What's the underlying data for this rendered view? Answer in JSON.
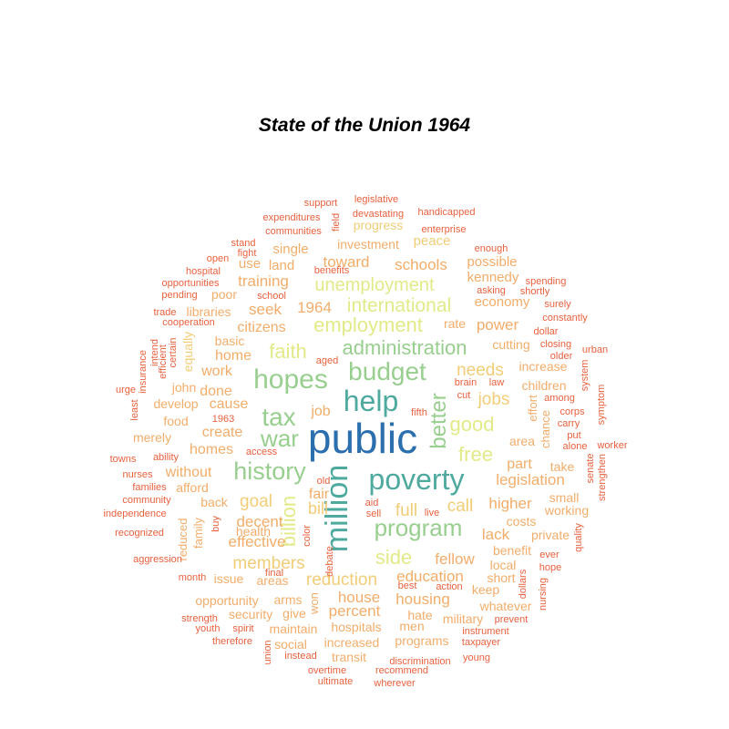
{
  "chart_data": {
    "type": "wordcloud",
    "title": "State of the Union 1964",
    "palette": {
      "t5": "#2c6fae",
      "t4": "#4ea99e",
      "t3": "#98cf8f",
      "t2": "#e2ea88",
      "t1": "#f1cd77",
      "t0b": "#f2ad6a",
      "t0": "#e8613f"
    },
    "words": [
      {
        "text": "public",
        "tier": "t5"
      },
      {
        "text": "help",
        "tier": "t4"
      },
      {
        "text": "million",
        "tier": "t4"
      },
      {
        "text": "poverty",
        "tier": "t4"
      },
      {
        "text": "hopes",
        "tier": "t3"
      },
      {
        "text": "budget",
        "tier": "t3"
      },
      {
        "text": "tax",
        "tier": "t3"
      },
      {
        "text": "war",
        "tier": "t3"
      },
      {
        "text": "history",
        "tier": "t3"
      },
      {
        "text": "program",
        "tier": "t3"
      },
      {
        "text": "administration",
        "tier": "t3"
      },
      {
        "text": "employment",
        "tier": "t2"
      },
      {
        "text": "better",
        "tier": "t3"
      },
      {
        "text": "faith",
        "tier": "t2"
      },
      {
        "text": "good",
        "tier": "t2"
      },
      {
        "text": "free",
        "tier": "t2"
      },
      {
        "text": "billion",
        "tier": "t2"
      },
      {
        "text": "side",
        "tier": "t2"
      },
      {
        "text": "international",
        "tier": "t2"
      },
      {
        "text": "unemployment",
        "tier": "t2"
      },
      {
        "text": "needs",
        "tier": "t1"
      },
      {
        "text": "jobs",
        "tier": "t1"
      },
      {
        "text": "goal",
        "tier": "t1"
      },
      {
        "text": "members",
        "tier": "t1"
      },
      {
        "text": "full",
        "tier": "t1"
      },
      {
        "text": "call",
        "tier": "t1"
      },
      {
        "text": "bill",
        "tier": "t1"
      },
      {
        "text": "reduction",
        "tier": "t1"
      },
      {
        "text": "schools",
        "tier": "t0b"
      },
      {
        "text": "toward",
        "tier": "t0b"
      },
      {
        "text": "training",
        "tier": "t0b"
      },
      {
        "text": "seek",
        "tier": "t0b"
      },
      {
        "text": "1964",
        "tier": "t0b"
      },
      {
        "text": "citizens",
        "tier": "t0b"
      },
      {
        "text": "power",
        "tier": "t0b"
      },
      {
        "text": "legislation",
        "tier": "t0b"
      },
      {
        "text": "higher",
        "tier": "t0b"
      },
      {
        "text": "lack",
        "tier": "t0b"
      },
      {
        "text": "fellow",
        "tier": "t0b"
      },
      {
        "text": "education",
        "tier": "t0b"
      },
      {
        "text": "house",
        "tier": "t0b"
      },
      {
        "text": "housing",
        "tier": "t0b"
      },
      {
        "text": "percent",
        "tier": "t0b"
      },
      {
        "text": "decent",
        "tier": "t0b"
      },
      {
        "text": "effective",
        "tier": "t0b"
      },
      {
        "text": "homes",
        "tier": "t0b"
      },
      {
        "text": "without",
        "tier": "t0b"
      },
      {
        "text": "create",
        "tier": "t0b"
      },
      {
        "text": "cause",
        "tier": "t0b"
      },
      {
        "text": "done",
        "tier": "t0b"
      },
      {
        "text": "work",
        "tier": "t0b"
      },
      {
        "text": "home",
        "tier": "t0b"
      },
      {
        "text": "fair",
        "tier": "t0b"
      },
      {
        "text": "job",
        "tier": "t0b"
      },
      {
        "text": "part",
        "tier": "t0b"
      },
      {
        "text": "economy",
        "tier": "t0b"
      },
      {
        "text": "kennedy",
        "tier": "t0b"
      },
      {
        "text": "possible",
        "tier": "t0b"
      },
      {
        "text": "peace",
        "tier": "t1"
      },
      {
        "text": "investment",
        "tier": "t0b"
      },
      {
        "text": "progress",
        "tier": "t1"
      },
      {
        "text": "single",
        "tier": "t0b"
      },
      {
        "text": "land",
        "tier": "t0b"
      },
      {
        "text": "use",
        "tier": "t0b"
      },
      {
        "text": "poor",
        "tier": "t0b"
      },
      {
        "text": "libraries",
        "tier": "t0b"
      },
      {
        "text": "basic",
        "tier": "t0b"
      },
      {
        "text": "equally",
        "tier": "t1"
      },
      {
        "text": "rate",
        "tier": "t0b"
      },
      {
        "text": "cutting",
        "tier": "t0b"
      },
      {
        "text": "increase",
        "tier": "t0b"
      },
      {
        "text": "children",
        "tier": "t0b"
      },
      {
        "text": "area",
        "tier": "t0b"
      },
      {
        "text": "take",
        "tier": "t0b"
      },
      {
        "text": "working",
        "tier": "t0b"
      },
      {
        "text": "small",
        "tier": "t0b"
      },
      {
        "text": "costs",
        "tier": "t0b"
      },
      {
        "text": "private",
        "tier": "t0b"
      },
      {
        "text": "benefit",
        "tier": "t0b"
      },
      {
        "text": "local",
        "tier": "t0b"
      },
      {
        "text": "short",
        "tier": "t0b"
      },
      {
        "text": "keep",
        "tier": "t0b"
      },
      {
        "text": "whatever",
        "tier": "t0b"
      },
      {
        "text": "military",
        "tier": "t0b"
      },
      {
        "text": "hate",
        "tier": "t0b"
      },
      {
        "text": "men",
        "tier": "t0b"
      },
      {
        "text": "programs",
        "tier": "t0b"
      },
      {
        "text": "hospitals",
        "tier": "t0b"
      },
      {
        "text": "increased",
        "tier": "t0b"
      },
      {
        "text": "social",
        "tier": "t0b"
      },
      {
        "text": "maintain",
        "tier": "t0b"
      },
      {
        "text": "give",
        "tier": "t0b"
      },
      {
        "text": "security",
        "tier": "t0b"
      },
      {
        "text": "arms",
        "tier": "t0b"
      },
      {
        "text": "opportunity",
        "tier": "t0b"
      },
      {
        "text": "areas",
        "tier": "t0b"
      },
      {
        "text": "issue",
        "tier": "t0b"
      },
      {
        "text": "health",
        "tier": "t0b"
      },
      {
        "text": "back",
        "tier": "t0b"
      },
      {
        "text": "afford",
        "tier": "t0b"
      },
      {
        "text": "develop",
        "tier": "t0b"
      },
      {
        "text": "food",
        "tier": "t0b"
      },
      {
        "text": "merely",
        "tier": "t0b"
      },
      {
        "text": "john",
        "tier": "t0b"
      },
      {
        "text": "transit",
        "tier": "t0b"
      },
      {
        "text": "won",
        "tier": "t0b"
      },
      {
        "text": "family",
        "tier": "t0b"
      },
      {
        "text": "reduced",
        "tier": "t0b"
      },
      {
        "text": "chance",
        "tier": "t0b"
      },
      {
        "text": "effort",
        "tier": "t0b"
      },
      {
        "text": "support",
        "tier": "t0"
      },
      {
        "text": "legislative",
        "tier": "t0"
      },
      {
        "text": "expenditures",
        "tier": "t0"
      },
      {
        "text": "devastating",
        "tier": "t0"
      },
      {
        "text": "handicapped",
        "tier": "t0"
      },
      {
        "text": "field",
        "tier": "t0"
      },
      {
        "text": "communities",
        "tier": "t0"
      },
      {
        "text": "enterprise",
        "tier": "t0"
      },
      {
        "text": "stand",
        "tier": "t0"
      },
      {
        "text": "fight",
        "tier": "t0"
      },
      {
        "text": "open",
        "tier": "t0"
      },
      {
        "text": "benefits",
        "tier": "t0"
      },
      {
        "text": "enough",
        "tier": "t0"
      },
      {
        "text": "hospital",
        "tier": "t0"
      },
      {
        "text": "opportunities",
        "tier": "t0"
      },
      {
        "text": "pending",
        "tier": "t0"
      },
      {
        "text": "school",
        "tier": "t0"
      },
      {
        "text": "spending",
        "tier": "t0"
      },
      {
        "text": "asking",
        "tier": "t0"
      },
      {
        "text": "shortly",
        "tier": "t0"
      },
      {
        "text": "surely",
        "tier": "t0"
      },
      {
        "text": "constantly",
        "tier": "t0"
      },
      {
        "text": "trade",
        "tier": "t0"
      },
      {
        "text": "cooperation",
        "tier": "t0"
      },
      {
        "text": "dollar",
        "tier": "t0"
      },
      {
        "text": "closing",
        "tier": "t0"
      },
      {
        "text": "older",
        "tier": "t0"
      },
      {
        "text": "urban",
        "tier": "t0"
      },
      {
        "text": "insurance",
        "tier": "t0"
      },
      {
        "text": "intend",
        "tier": "t0"
      },
      {
        "text": "efficient",
        "tier": "t0"
      },
      {
        "text": "certain",
        "tier": "t0"
      },
      {
        "text": "aged",
        "tier": "t0"
      },
      {
        "text": "brain",
        "tier": "t0"
      },
      {
        "text": "law",
        "tier": "t0"
      },
      {
        "text": "cut",
        "tier": "t0"
      },
      {
        "text": "system",
        "tier": "t0"
      },
      {
        "text": "urge",
        "tier": "t0"
      },
      {
        "text": "least",
        "tier": "t0"
      },
      {
        "text": "among",
        "tier": "t0"
      },
      {
        "text": "symptom",
        "tier": "t0"
      },
      {
        "text": "1963",
        "tier": "t0"
      },
      {
        "text": "fifth",
        "tier": "t0"
      },
      {
        "text": "carry",
        "tier": "t0"
      },
      {
        "text": "put",
        "tier": "t0"
      },
      {
        "text": "corps",
        "tier": "t0"
      },
      {
        "text": "alone",
        "tier": "t0"
      },
      {
        "text": "worker",
        "tier": "t0"
      },
      {
        "text": "towns",
        "tier": "t0"
      },
      {
        "text": "ability",
        "tier": "t0"
      },
      {
        "text": "access",
        "tier": "t0"
      },
      {
        "text": "senate",
        "tier": "t0"
      },
      {
        "text": "strengthen",
        "tier": "t0"
      },
      {
        "text": "nurses",
        "tier": "t0"
      },
      {
        "text": "families",
        "tier": "t0"
      },
      {
        "text": "old",
        "tier": "t0"
      },
      {
        "text": "community",
        "tier": "t0"
      },
      {
        "text": "aid",
        "tier": "t0"
      },
      {
        "text": "sell",
        "tier": "t0"
      },
      {
        "text": "live",
        "tier": "t0"
      },
      {
        "text": "independence",
        "tier": "t0"
      },
      {
        "text": "buy",
        "tier": "t0"
      },
      {
        "text": "color",
        "tier": "t0"
      },
      {
        "text": "recognized",
        "tier": "t0"
      },
      {
        "text": "quality",
        "tier": "t0"
      },
      {
        "text": "aggression",
        "tier": "t0"
      },
      {
        "text": "debate",
        "tier": "t0"
      },
      {
        "text": "ever",
        "tier": "t0"
      },
      {
        "text": "hope",
        "tier": "t0"
      },
      {
        "text": "final",
        "tier": "t0"
      },
      {
        "text": "dollars",
        "tier": "t0"
      },
      {
        "text": "month",
        "tier": "t0"
      },
      {
        "text": "best",
        "tier": "t0"
      },
      {
        "text": "action",
        "tier": "t0"
      },
      {
        "text": "nursing",
        "tier": "t0"
      },
      {
        "text": "strength",
        "tier": "t0"
      },
      {
        "text": "prevent",
        "tier": "t0"
      },
      {
        "text": "youth",
        "tier": "t0"
      },
      {
        "text": "spirit",
        "tier": "t0"
      },
      {
        "text": "instrument",
        "tier": "t0"
      },
      {
        "text": "therefore",
        "tier": "t0"
      },
      {
        "text": "taxpayer",
        "tier": "t0"
      },
      {
        "text": "union",
        "tier": "t0"
      },
      {
        "text": "instead",
        "tier": "t0"
      },
      {
        "text": "young",
        "tier": "t0"
      },
      {
        "text": "discrimination",
        "tier": "t0"
      },
      {
        "text": "overtime",
        "tier": "t0"
      },
      {
        "text": "recommend",
        "tier": "t0"
      },
      {
        "text": "ultimate",
        "tier": "t0"
      },
      {
        "text": "wherever",
        "tier": "t0"
      }
    ]
  }
}
